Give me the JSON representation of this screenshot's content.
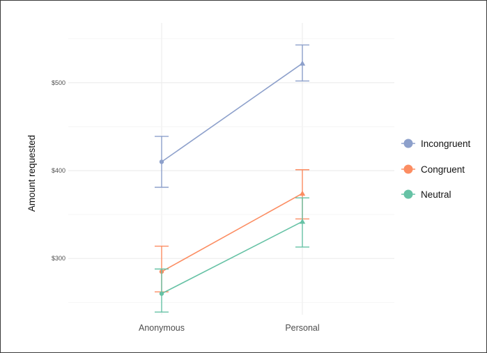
{
  "chart_data": {
    "type": "line",
    "title": "",
    "xlabel": "",
    "ylabel": "Amount requested",
    "categories": [
      "Anonymous",
      "Personal"
    ],
    "y_ticks": [
      {
        "value": 300,
        "label": "$300"
      },
      {
        "value": 400,
        "label": "$400"
      },
      {
        "value": 500,
        "label": "$500"
      }
    ],
    "ylim": [
      236,
      568
    ],
    "grid": true,
    "legend_position": "right",
    "series": [
      {
        "name": "Incongruent",
        "color": "#8da0cb",
        "values": [
          410,
          522
        ],
        "error_low": [
          381,
          502
        ],
        "error_high": [
          439,
          543
        ],
        "markers": [
          "circle",
          "triangle"
        ]
      },
      {
        "name": "Congruent",
        "color": "#fc8d62",
        "values": [
          285,
          374
        ],
        "error_low": [
          262,
          345
        ],
        "error_high": [
          314,
          401
        ],
        "markers": [
          "circle",
          "triangle"
        ]
      },
      {
        "name": "Neutral",
        "color": "#66c2a5",
        "values": [
          260,
          342
        ],
        "error_low": [
          239,
          313
        ],
        "error_high": [
          288,
          369
        ],
        "markers": [
          "circle",
          "triangle"
        ]
      }
    ]
  }
}
